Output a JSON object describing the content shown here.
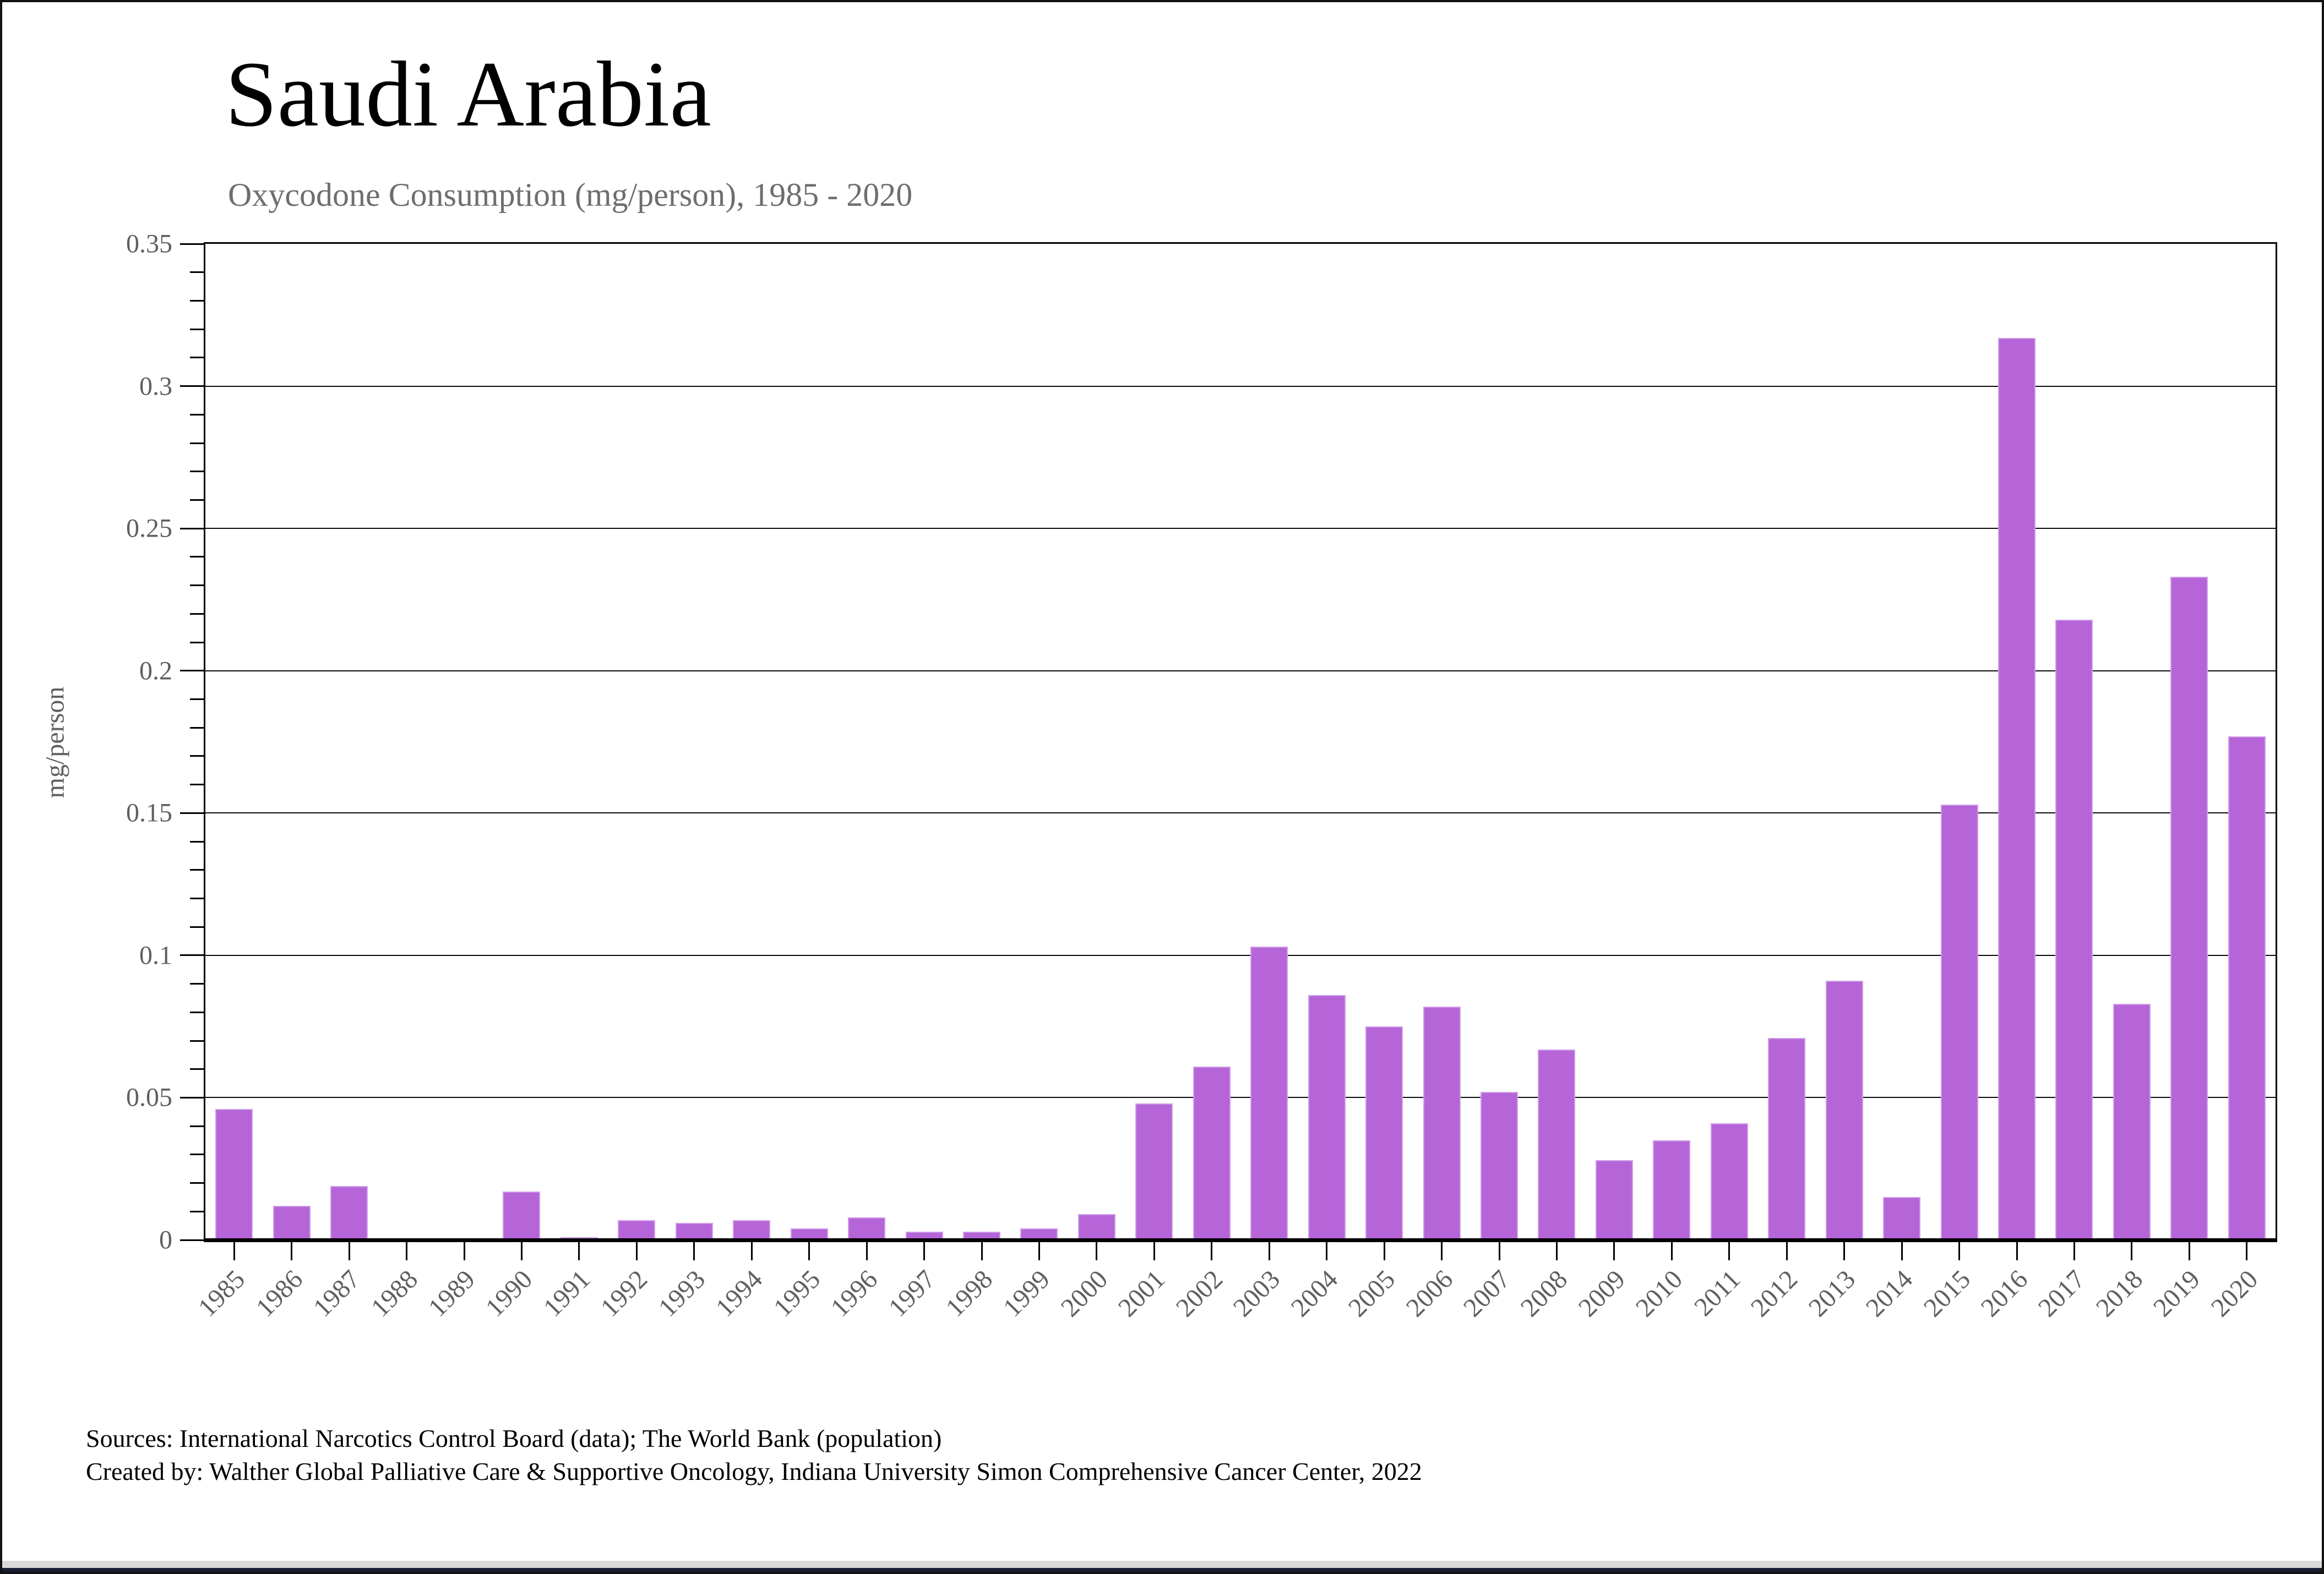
{
  "header": {
    "title": "Saudi Arabia",
    "subtitle": "Oxycodone Consumption (mg/person), 1985 - 2020"
  },
  "footer": {
    "line1": "Sources: International Narcotics Control Board (data); The World Bank (population)",
    "line2": "Created by: Walther Global Palliative Care & Supportive Oncology, Indiana University Simon Comprehensive Cancer Center, 2022"
  },
  "colors": {
    "bar_fill": "#b565d8",
    "bar_edge": "#cf9de9",
    "gridline": "#0a0a0a",
    "tick_label": "#5f5f5f",
    "subtitle": "#6e6e6e",
    "bottom_strip_gray": "#d9d9d9",
    "bottom_strip_dark": "#171d33"
  },
  "chart_data": {
    "type": "bar",
    "title": "Saudi Arabia",
    "subtitle": "Oxycodone Consumption (mg/person), 1985 - 2020",
    "xlabel": "",
    "ylabel": "mg/person",
    "ylim": [
      0,
      0.35
    ],
    "grid": "horizontal major gridlines on, full plot box frame",
    "legend_position": "none",
    "y_tick_values": [
      0,
      0.05,
      0.1,
      0.15,
      0.2,
      0.25,
      0.3,
      0.35
    ],
    "y_tick_labels": [
      "0",
      "0.05",
      "0.1",
      "0.15",
      "0.2",
      "0.25",
      "0.3",
      "0.35"
    ],
    "y_minor_tick_step": 0.01,
    "categories": [
      "1985",
      "1986",
      "1987",
      "1988",
      "1989",
      "1990",
      "1991",
      "1992",
      "1993",
      "1994",
      "1995",
      "1996",
      "1997",
      "1998",
      "1999",
      "2000",
      "2001",
      "2002",
      "2003",
      "2004",
      "2005",
      "2006",
      "2007",
      "2008",
      "2009",
      "2010",
      "2011",
      "2012",
      "2013",
      "2014",
      "2015",
      "2016",
      "2017",
      "2018",
      "2019",
      "2020"
    ],
    "values": [
      0.046,
      0.012,
      0.019,
      0,
      0,
      0.017,
      0.001,
      0.007,
      0.006,
      0.007,
      0.004,
      0.008,
      0.003,
      0.003,
      0.004,
      0.009,
      0.048,
      0.061,
      0.103,
      0.086,
      0.075,
      0.082,
      0.052,
      0.067,
      0.028,
      0.035,
      0.041,
      0.071,
      0.091,
      0.015,
      0.153,
      0.317,
      0.218,
      0.083,
      0.233,
      0.177
    ]
  }
}
